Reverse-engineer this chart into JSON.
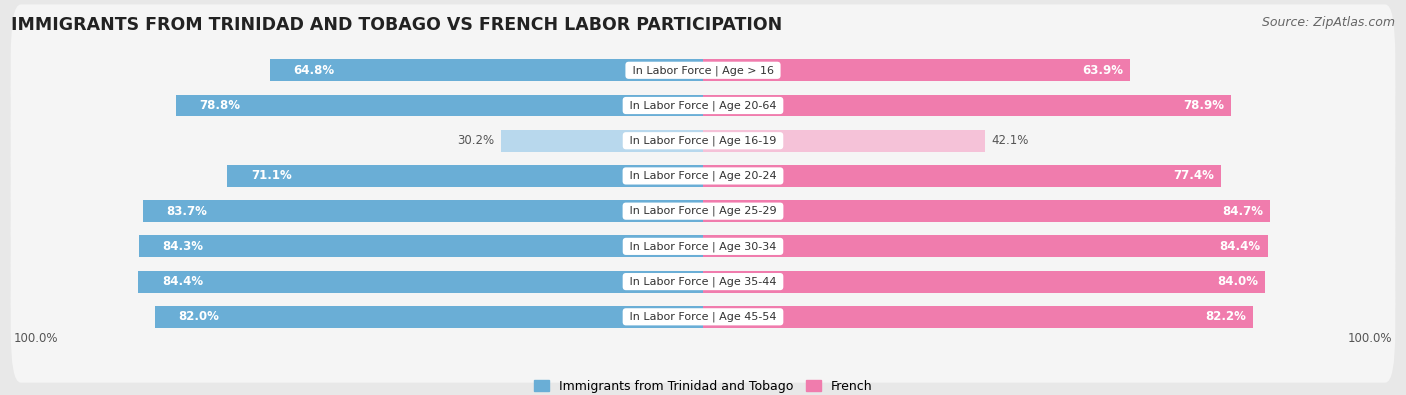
{
  "title": "IMMIGRANTS FROM TRINIDAD AND TOBAGO VS FRENCH LABOR PARTICIPATION",
  "source": "Source: ZipAtlas.com",
  "categories": [
    "In Labor Force | Age > 16",
    "In Labor Force | Age 20-64",
    "In Labor Force | Age 16-19",
    "In Labor Force | Age 20-24",
    "In Labor Force | Age 25-29",
    "In Labor Force | Age 30-34",
    "In Labor Force | Age 35-44",
    "In Labor Force | Age 45-54"
  ],
  "left_values": [
    64.8,
    78.8,
    30.2,
    71.1,
    83.7,
    84.3,
    84.4,
    82.0
  ],
  "right_values": [
    63.9,
    78.9,
    42.1,
    77.4,
    84.7,
    84.4,
    84.0,
    82.2
  ],
  "left_color": "#6aaed6",
  "right_color": "#f07cad",
  "left_color_light": "#b8d8ed",
  "right_color_light": "#f5c2d8",
  "label_left": "Immigrants from Trinidad and Tobago",
  "label_right": "French",
  "bg_color": "#e8e8e8",
  "row_bg_color": "#f5f5f5",
  "bar_height": 0.62,
  "xlim": 100,
  "title_fontsize": 12.5,
  "source_fontsize": 9,
  "bar_label_fontsize": 8.5,
  "cat_label_fontsize": 8,
  "low_value_threshold": 55
}
